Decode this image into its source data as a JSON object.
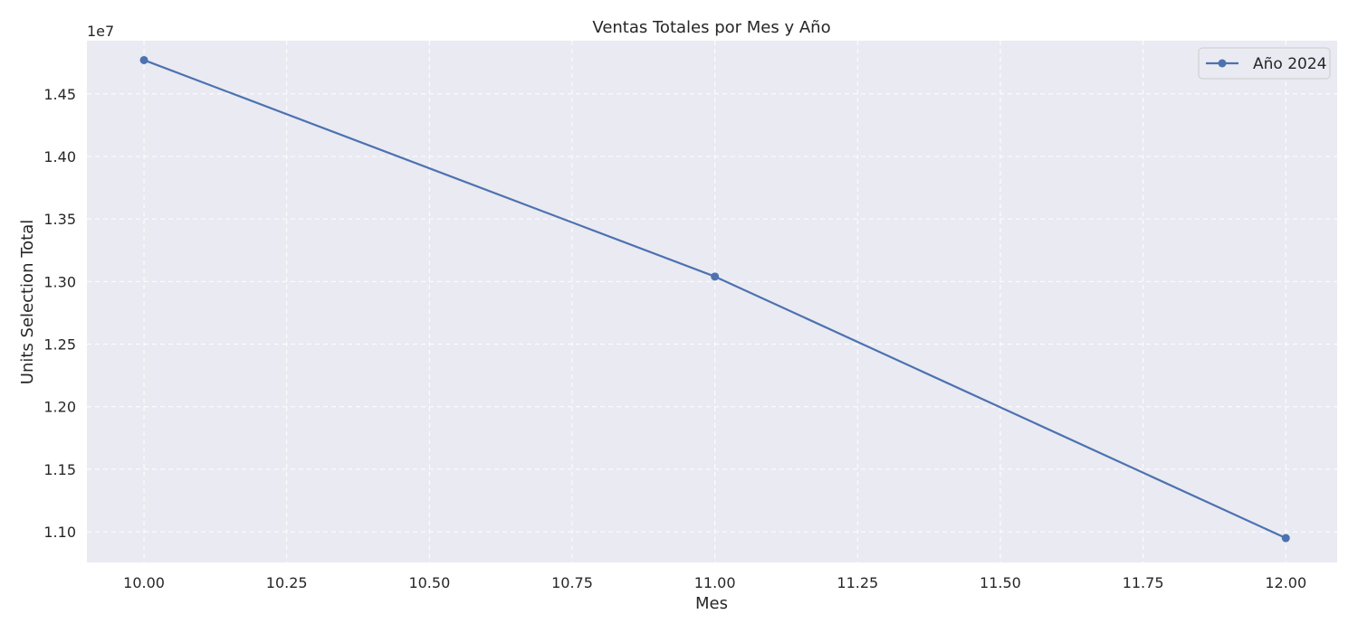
{
  "chart_data": {
    "type": "line",
    "title": "Ventas Totales por Mes y Año",
    "xlabel": "Mes",
    "ylabel": "Units Selection Total",
    "y_offset_label": "1e7",
    "x_ticks": [
      "10.00",
      "10.25",
      "10.50",
      "10.75",
      "11.00",
      "11.25",
      "11.50",
      "11.75",
      "12.00"
    ],
    "x_tick_values": [
      10.0,
      10.25,
      10.5,
      10.75,
      11.0,
      11.25,
      11.5,
      11.75,
      12.0
    ],
    "y_ticks": [
      "1.10",
      "1.15",
      "1.20",
      "1.25",
      "1.30",
      "1.35",
      "1.40",
      "1.45"
    ],
    "y_tick_values": [
      1.1,
      1.15,
      1.2,
      1.25,
      1.3,
      1.35,
      1.4,
      1.45
    ],
    "xlim": [
      9.9,
      12.09
    ],
    "ylim": [
      1.0755,
      1.4925
    ],
    "y_scale": 10000000,
    "grid": true,
    "legend_position": "top-right",
    "series": [
      {
        "name": "Año 2024",
        "color": "#4c72b0",
        "marker": "circle",
        "x": [
          10,
          11,
          12
        ],
        "y": [
          14770000,
          13040000,
          10950000
        ]
      }
    ],
    "colors": {
      "plot_background": "#eaeaf2",
      "grid": "#ffffff",
      "text": "#262626"
    }
  }
}
